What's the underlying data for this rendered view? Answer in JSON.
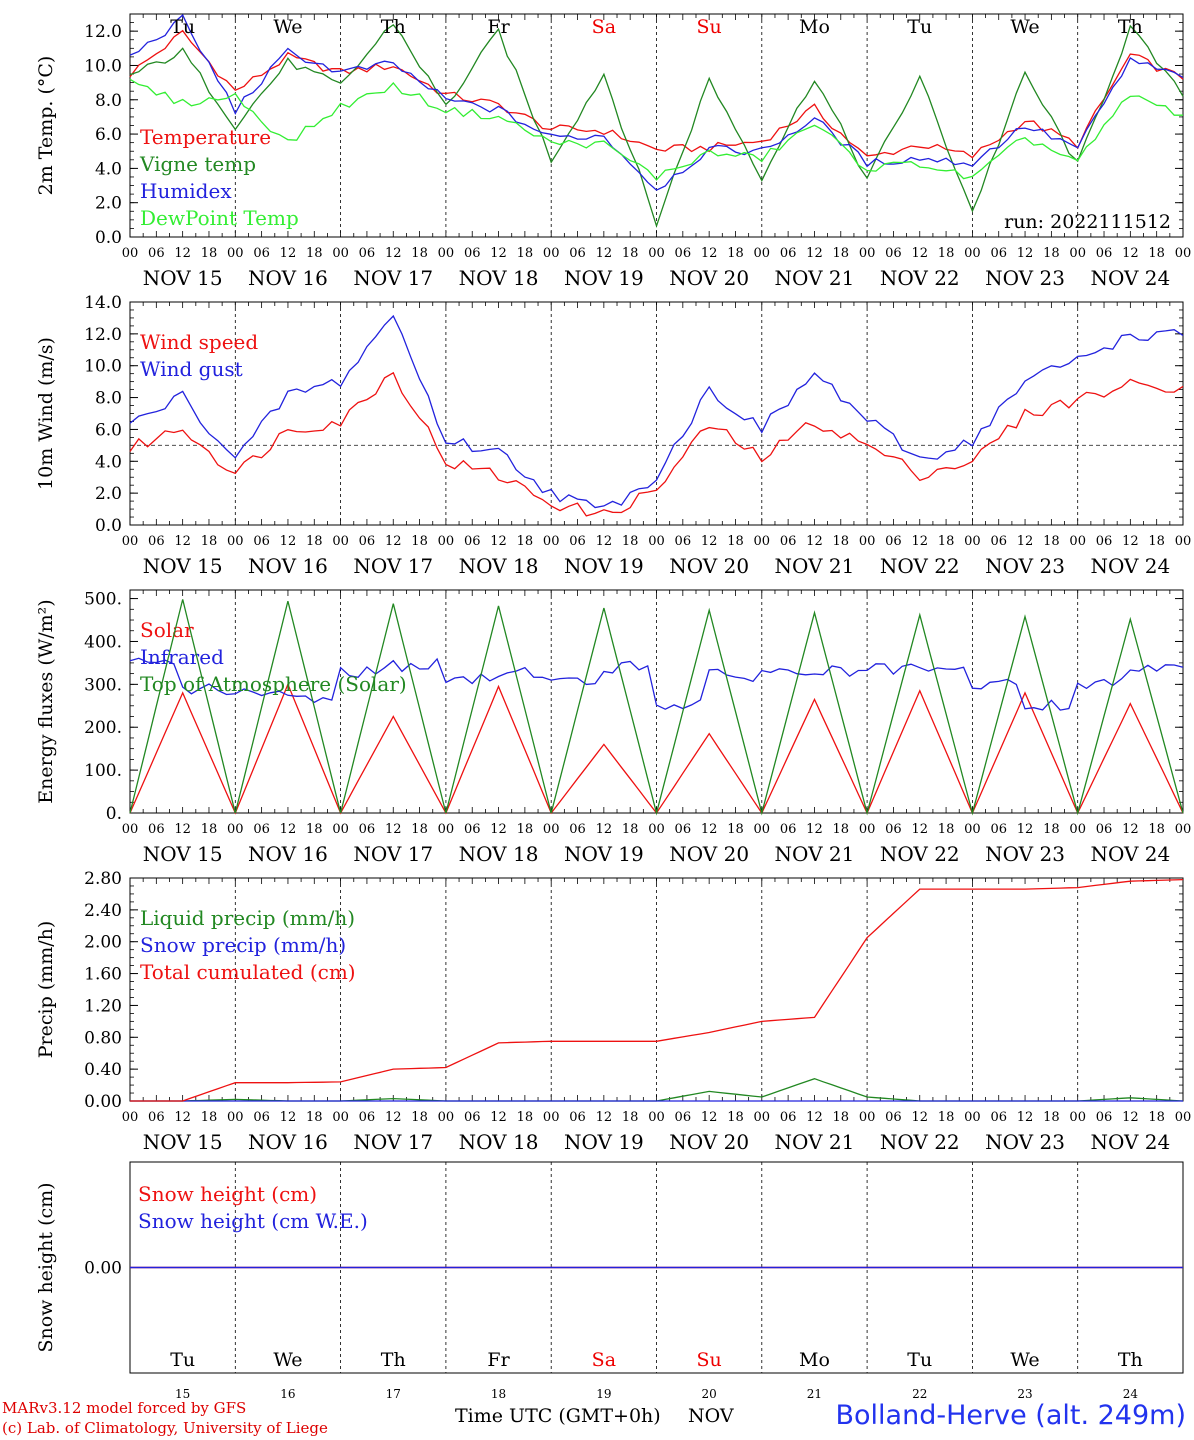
{
  "layout_days": [
    "NOV 15",
    "NOV 16",
    "NOV 17",
    "NOV 18",
    "NOV 19",
    "NOV 20",
    "NOV 21",
    "NOV 22",
    "NOV 23",
    "NOV 24"
  ],
  "weekday_labels": [
    {
      "label": "Tu",
      "color": "#000000"
    },
    {
      "label": "We",
      "color": "#000000"
    },
    {
      "label": "Th",
      "color": "#000000"
    },
    {
      "label": "Fr",
      "color": "#000000"
    },
    {
      "label": "Sa",
      "color": "#ee0000"
    },
    {
      "label": "Su",
      "color": "#ee0000"
    },
    {
      "label": "Mo",
      "color": "#000000"
    },
    {
      "label": "Tu",
      "color": "#000000"
    },
    {
      "label": "We",
      "color": "#000000"
    },
    {
      "label": "Th",
      "color": "#000000"
    }
  ],
  "hour_ticks": [
    "00",
    "06",
    "12",
    "18"
  ],
  "hour_ticks_end": "00",
  "bottom_day_numbers": [
    "15",
    "16",
    "17",
    "18",
    "19",
    "20",
    "21",
    "22",
    "23",
    "24"
  ],
  "footer": {
    "credit_line1": "MARv3.12 model forced by GFS",
    "credit_line2": "(c) Lab. of Climatology, University of Liege",
    "axis_label": "Time UTC (GMT+0h)",
    "month": "NOV",
    "station": "Bolland-Herve (alt. 249m)"
  },
  "chart_data": [
    {
      "type": "line",
      "ylabel": "2m Temp. (°C)",
      "ylim": [
        0,
        13
      ],
      "yticks": [
        "0.0",
        "2.0",
        "4.0",
        "6.0",
        "8.0",
        "10.0",
        "12.0"
      ],
      "run_label": "run: 2022111512",
      "x": [
        "NOV 15 00",
        "NOV 15 12",
        "NOV 16 00",
        "NOV 16 12",
        "NOV 17 00",
        "NOV 17 12",
        "NOV 18 00",
        "NOV 18 12",
        "NOV 19 00",
        "NOV 19 12",
        "NOV 20 00",
        "NOV 20 12",
        "NOV 21 00",
        "NOV 21 12",
        "NOV 22 00",
        "NOV 22 12",
        "NOV 23 00",
        "NOV 23 12",
        "NOV 24 00",
        "NOV 24 12",
        "NOV 25 00"
      ],
      "series": [
        {
          "name": "Temperature",
          "color": "#ee1111",
          "values": [
            9.5,
            11.9,
            8.5,
            10.5,
            9.6,
            10.0,
            8.3,
            7.7,
            6.3,
            6.2,
            5.1,
            5.2,
            5.6,
            7.5,
            4.6,
            5.4,
            4.7,
            6.8,
            5.4,
            10.6,
            9.2
          ]
        },
        {
          "name": "Vigne temp",
          "color": "#228822",
          "values": [
            9.4,
            10.8,
            6.5,
            10.2,
            8.8,
            12.5,
            7.6,
            12.0,
            4.5,
            9.5,
            0.8,
            9.2,
            3.5,
            9.3,
            3.4,
            9.3,
            1.5,
            9.5,
            4.2,
            12.2,
            8.2
          ]
        },
        {
          "name": "Humidex",
          "color": "#2222dd",
          "values": [
            10.5,
            12.7,
            7.4,
            10.8,
            9.6,
            10.1,
            8.0,
            7.4,
            5.8,
            5.9,
            2.8,
            5.1,
            5.0,
            6.9,
            4.3,
            4.6,
            4.3,
            6.5,
            5.2,
            10.3,
            9.3
          ]
        },
        {
          "name": "DewPoint Temp",
          "color": "#33ee33",
          "values": [
            9.0,
            7.8,
            8.2,
            5.5,
            7.6,
            8.8,
            7.4,
            7.0,
            5.5,
            5.4,
            3.5,
            4.9,
            4.6,
            6.6,
            4.0,
            4.3,
            3.4,
            5.8,
            4.4,
            8.3,
            7.1
          ]
        }
      ]
    },
    {
      "type": "line",
      "ylabel": "10m Wind (m/s)",
      "ylim": [
        0,
        14
      ],
      "yticks": [
        "0.0",
        "2.0",
        "4.0",
        "6.0",
        "8.0",
        "10.0",
        "12.0",
        "14.0"
      ],
      "reference_line": 5,
      "x": [
        "NOV 15 00",
        "NOV 15 12",
        "NOV 16 00",
        "NOV 16 12",
        "NOV 17 00",
        "NOV 17 12",
        "NOV 18 00",
        "NOV 18 12",
        "NOV 19 00",
        "NOV 19 12",
        "NOV 20 00",
        "NOV 20 12",
        "NOV 21 00",
        "NOV 21 12",
        "NOV 22 00",
        "NOV 22 12",
        "NOV 23 00",
        "NOV 23 12",
        "NOV 24 00",
        "NOV 24 12",
        "NOV 25 00"
      ],
      "series": [
        {
          "name": "Wind speed",
          "color": "#ee1111",
          "values": [
            4.8,
            6.1,
            3.2,
            6.0,
            6.5,
            9.6,
            4.0,
            3.1,
            1.4,
            0.6,
            2.2,
            6.3,
            4.2,
            6.5,
            5.0,
            3.2,
            4.0,
            6.9,
            7.9,
            8.8,
            8.7
          ]
        },
        {
          "name": "Wind gust",
          "color": "#2222dd",
          "values": [
            6.3,
            8.1,
            4.1,
            8.2,
            9.0,
            13.2,
            5.3,
            4.6,
            2.0,
            0.9,
            3.1,
            8.5,
            6.0,
            9.5,
            6.6,
            4.1,
            5.3,
            9.0,
            10.4,
            11.9,
            11.9
          ]
        }
      ]
    },
    {
      "type": "line",
      "ylabel": "Energy fluxes (W/m²)",
      "ylim": [
        0,
        520
      ],
      "yticks": [
        "0.",
        "100.",
        "200.",
        "300.",
        "400.",
        "500."
      ],
      "x": [
        "NOV 15 00",
        "NOV 15 12",
        "NOV 16 00",
        "NOV 16 12",
        "NOV 17 00",
        "NOV 17 12",
        "NOV 18 00",
        "NOV 18 12",
        "NOV 19 00",
        "NOV 19 12",
        "NOV 20 00",
        "NOV 20 12",
        "NOV 21 00",
        "NOV 21 12",
        "NOV 22 00",
        "NOV 22 12",
        "NOV 23 00",
        "NOV 23 12",
        "NOV 24 00",
        "NOV 24 12",
        "NOV 25 00"
      ],
      "series": [
        {
          "name": "Solar",
          "color": "#ee1111",
          "values": [
            0,
            280,
            0,
            300,
            0,
            225,
            0,
            295,
            0,
            160,
            0,
            185,
            0,
            265,
            0,
            285,
            0,
            280,
            0,
            255,
            0
          ]
        },
        {
          "name": "Infrared",
          "color": "#2222dd",
          "values": [
            348,
            290,
            275,
            270,
            330,
            345,
            310,
            330,
            305,
            340,
            255,
            320,
            328,
            330,
            333,
            330,
            300,
            250,
            300,
            345,
            340
          ]
        },
        {
          "name": "Top of Atmosphere (Solar)",
          "color": "#228822",
          "values": [
            0,
            498,
            0,
            494,
            0,
            488,
            0,
            483,
            0,
            478,
            0,
            473,
            0,
            467,
            0,
            462,
            0,
            458,
            0,
            452,
            0
          ]
        }
      ]
    },
    {
      "type": "line",
      "ylabel": "Precip (mm/h)",
      "ylim": [
        0,
        2.8
      ],
      "yticks": [
        "0.00",
        "0.40",
        "0.80",
        "1.20",
        "1.60",
        "2.00",
        "2.40",
        "2.80"
      ],
      "x": [
        "NOV 15 00",
        "NOV 15 12",
        "NOV 16 00",
        "NOV 16 12",
        "NOV 17 00",
        "NOV 17 12",
        "NOV 18 00",
        "NOV 18 12",
        "NOV 19 00",
        "NOV 19 12",
        "NOV 20 00",
        "NOV 20 12",
        "NOV 21 00",
        "NOV 21 12",
        "NOV 22 00",
        "NOV 22 12",
        "NOV 23 00",
        "NOV 23 12",
        "NOV 24 00",
        "NOV 24 12",
        "NOV 25 00"
      ],
      "series": [
        {
          "name": "Liquid precip (mm/h)",
          "color": "#228822",
          "values": [
            0,
            0,
            0.02,
            0,
            0,
            0.03,
            0,
            0,
            0,
            0,
            0,
            0.12,
            0.05,
            0.28,
            0.05,
            0,
            0,
            0,
            0,
            0.04,
            0
          ]
        },
        {
          "name": "Snow precip (mm/h)",
          "color": "#2222dd",
          "values": [
            0,
            0,
            0,
            0,
            0,
            0,
            0,
            0,
            0,
            0,
            0,
            0,
            0,
            0,
            0,
            0,
            0,
            0,
            0,
            0,
            0
          ]
        },
        {
          "name": "Total cumulated (cm)",
          "color": "#ee1111",
          "values": [
            0,
            0,
            0.23,
            0.23,
            0.24,
            0.4,
            0.42,
            0.73,
            0.75,
            0.75,
            0.75,
            0.86,
            1.0,
            1.05,
            2.05,
            2.66,
            2.66,
            2.66,
            2.68,
            2.76,
            2.78
          ]
        }
      ]
    },
    {
      "type": "line",
      "ylabel": "Snow height (cm)",
      "ylim": [
        -1,
        1
      ],
      "yticks": [
        "0.00"
      ],
      "x": [
        "NOV 15 00",
        "NOV 25 00"
      ],
      "series": [
        {
          "name": "Snow height (cm)",
          "color": "#ee1111",
          "values": [
            0,
            0
          ]
        },
        {
          "name": "Snow height (cm W.E.)",
          "color": "#2222dd",
          "values": [
            0,
            0
          ]
        }
      ]
    }
  ]
}
